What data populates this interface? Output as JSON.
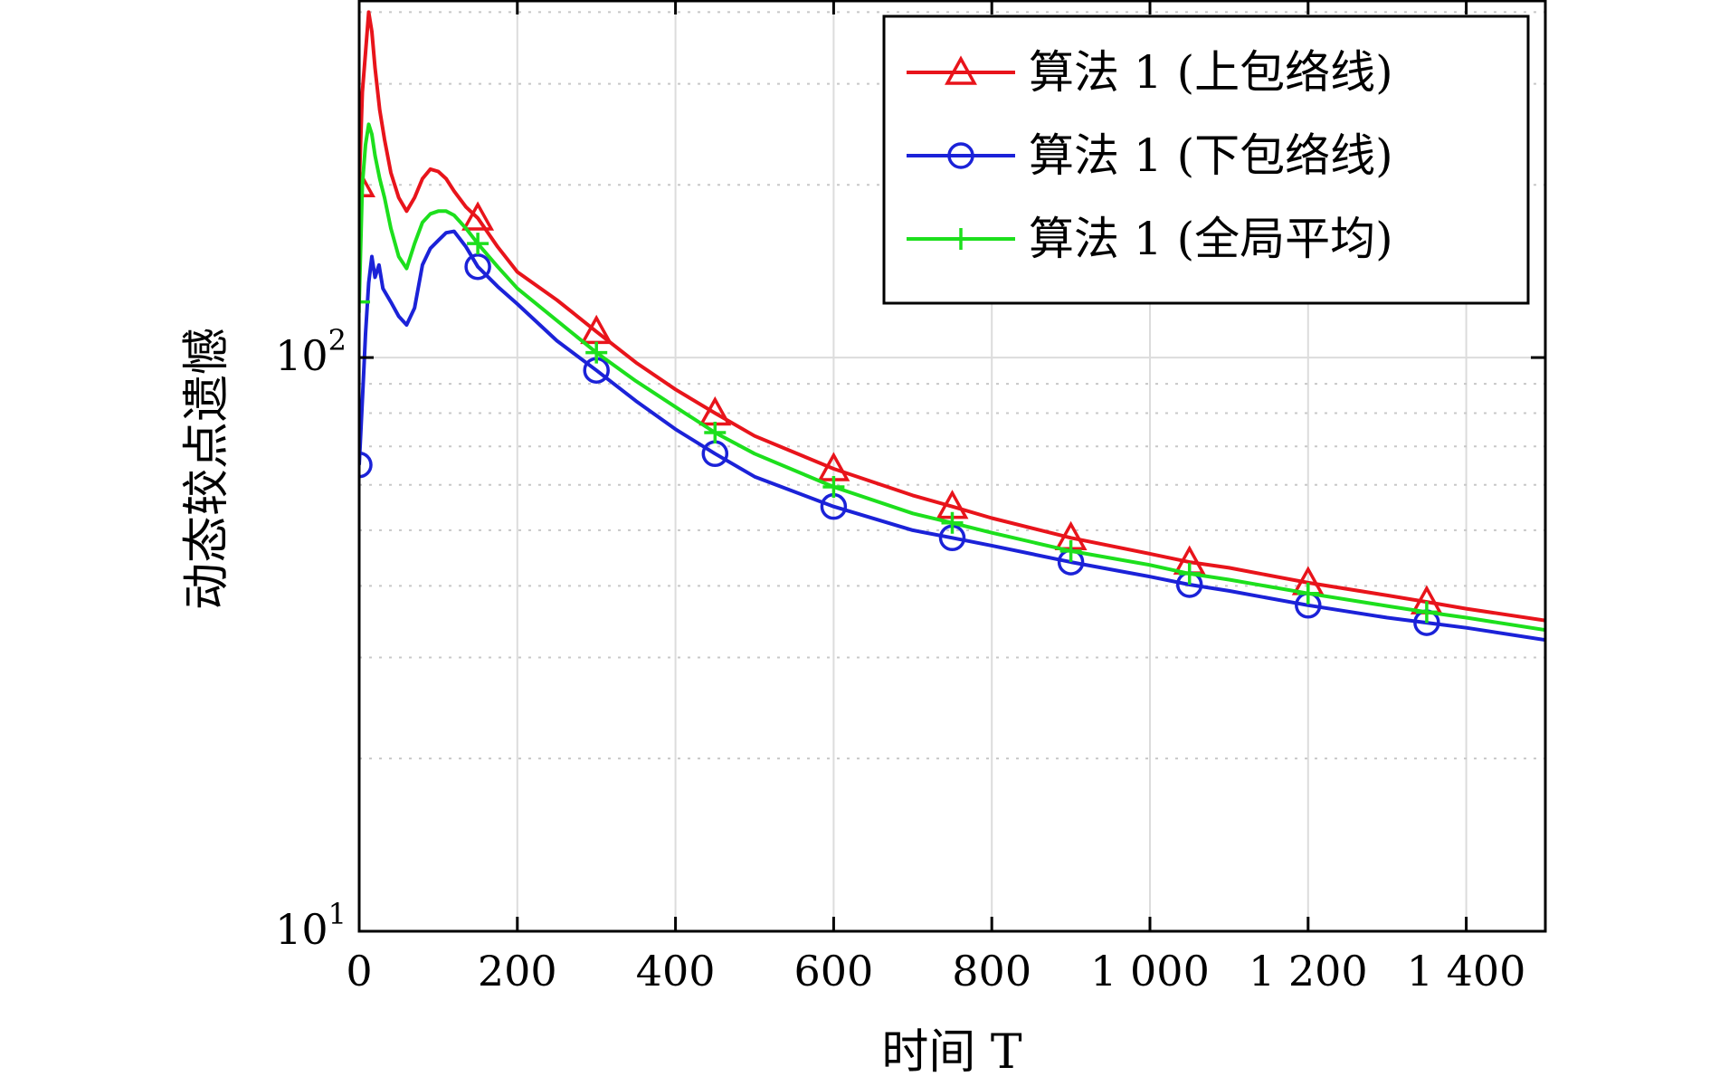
{
  "chart_data": {
    "type": "line",
    "xlabel": "时间 T",
    "ylabel": "动态较点遗憾",
    "x_ticks": [
      {
        "value": 0,
        "label": "0"
      },
      {
        "value": 200,
        "label": "200"
      },
      {
        "value": 400,
        "label": "400"
      },
      {
        "value": 600,
        "label": "600"
      },
      {
        "value": 800,
        "label": "800"
      },
      {
        "value": 1000,
        "label": "1 000"
      },
      {
        "value": 1200,
        "label": "1 200"
      },
      {
        "value": 1400,
        "label": "1 400"
      }
    ],
    "y_ticks": [
      {
        "value": 10,
        "base": "10",
        "exp": "1"
      },
      {
        "value": 100,
        "base": "10",
        "exp": "2"
      }
    ],
    "xlim": [
      0,
      1500
    ],
    "ylim": [
      10,
      420
    ],
    "y_scale": "log",
    "grid": true,
    "legend_position": "top-right",
    "series": [
      {
        "name": "算法 1 (上包络线)",
        "color": "#e8141b",
        "marker": "triangle",
        "x": [
          0,
          4,
          8,
          12,
          16,
          20,
          26,
          32,
          40,
          50,
          60,
          70,
          80,
          90,
          100,
          110,
          120,
          135,
          150,
          175,
          200,
          250,
          300,
          350,
          400,
          450,
          500,
          600,
          700,
          750,
          800,
          900,
          1000,
          1050,
          1100,
          1200,
          1300,
          1350,
          1400,
          1500
        ],
        "y": [
          200,
          290,
          340,
          400,
          370,
          320,
          270,
          240,
          210,
          190,
          180,
          190,
          205,
          213,
          211,
          205,
          195,
          183,
          175,
          156,
          141,
          126,
          111,
          98,
          88,
          80,
          73,
          64,
          57.5,
          55,
          52.5,
          48.5,
          45.5,
          44,
          43,
          40.5,
          38.5,
          37.5,
          36.5,
          34.8
        ],
        "marker_x": [
          0,
          150,
          300,
          450,
          600,
          750,
          900,
          1050,
          1200,
          1350
        ]
      },
      {
        "name": "算法 1 (下包络线)",
        "color": "#1b22d8",
        "marker": "circle",
        "x": [
          0,
          5,
          8,
          12,
          16,
          20,
          25,
          30,
          40,
          50,
          60,
          70,
          80,
          90,
          100,
          110,
          120,
          135,
          150,
          175,
          200,
          250,
          300,
          350,
          400,
          450,
          500,
          600,
          700,
          750,
          800,
          900,
          1000,
          1050,
          1100,
          1200,
          1300,
          1350,
          1400,
          1500
        ],
        "y": [
          65,
          90,
          110,
          135,
          150,
          138,
          145,
          132,
          125,
          118,
          114,
          122,
          145,
          155,
          160,
          165,
          166,
          156,
          144,
          133,
          124,
          107,
          95,
          84,
          75,
          68,
          62,
          55,
          50,
          48.5,
          47,
          44,
          41.5,
          40.2,
          39.2,
          37,
          35.2,
          34.5,
          33.8,
          32.2
        ],
        "marker_x": [
          0,
          150,
          300,
          450,
          600,
          750,
          900,
          1050,
          1200,
          1350
        ]
      },
      {
        "name": "算法 1 (全局平均)",
        "color": "#1ddf1d",
        "marker": "plus",
        "x": [
          0,
          4,
          8,
          12,
          16,
          20,
          26,
          32,
          40,
          50,
          60,
          70,
          80,
          90,
          100,
          110,
          120,
          135,
          150,
          175,
          200,
          250,
          300,
          350,
          400,
          450,
          500,
          600,
          700,
          750,
          800,
          900,
          1000,
          1050,
          1100,
          1200,
          1300,
          1350,
          1400,
          1500
        ],
        "y": [
          125,
          200,
          235,
          255,
          245,
          225,
          205,
          190,
          168,
          150,
          143,
          158,
          172,
          178,
          180,
          180,
          177,
          168,
          158,
          144,
          132,
          116,
          102,
          91,
          82,
          74,
          68,
          59.5,
          53.5,
          51.5,
          49.5,
          46,
          43.5,
          42,
          41,
          38.8,
          36.9,
          36,
          35.2,
          33.5
        ],
        "marker_x": [
          0,
          150,
          300,
          450,
          600,
          750,
          900,
          1050,
          1200,
          1350
        ]
      }
    ]
  }
}
